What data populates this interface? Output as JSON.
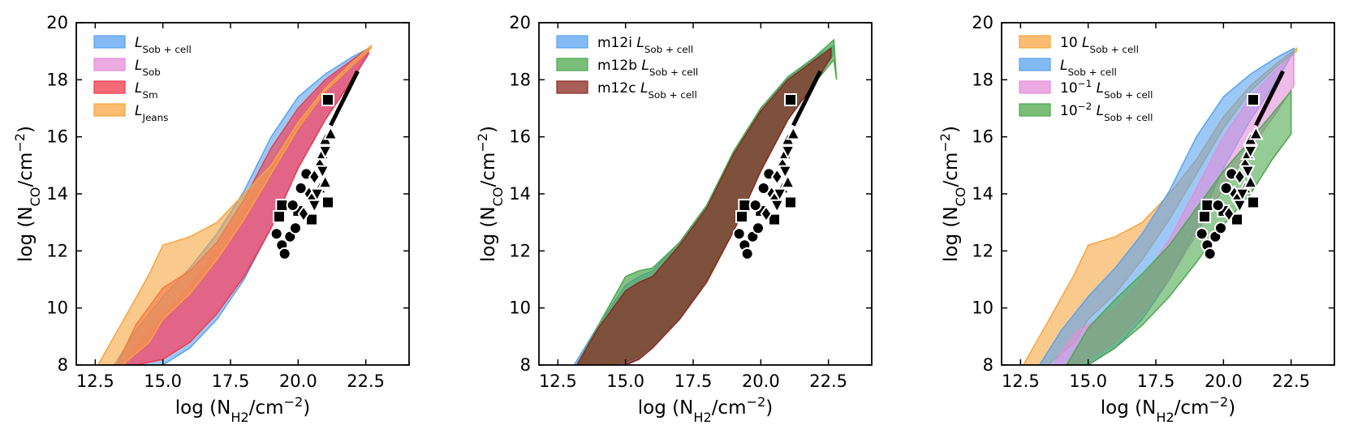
{
  "chart_data": [
    {
      "type": "area",
      "xlabel": "log (N_H2/cm^-2)",
      "ylabel": "log (N_CO/cm^-2)",
      "xlim": [
        11.8,
        24.1
      ],
      "ylim": [
        8,
        20
      ],
      "xticks": [
        "12.5",
        "15.0",
        "17.5",
        "20.0",
        "22.5"
      ],
      "yticks": [
        "8",
        "10",
        "12",
        "14",
        "16",
        "18",
        "20"
      ],
      "legend_position": "upper-left",
      "series": [
        {
          "name": "L_Sob+cell",
          "color": "#5aa3f0",
          "x": [
            13.2,
            14.0,
            15.0,
            16.0,
            17.0,
            18.0,
            19.0,
            20.0,
            21.0,
            22.0,
            22.6
          ],
          "upper": [
            8.0,
            9.2,
            10.4,
            11.4,
            12.6,
            14.1,
            16.0,
            17.4,
            18.2,
            18.8,
            19.1
          ],
          "lower": [
            8.0,
            8.0,
            8.0,
            8.6,
            9.6,
            11.0,
            12.8,
            14.9,
            16.6,
            18.0,
            19.0
          ]
        },
        {
          "name": "L_Sob",
          "color": "#e48ed8",
          "x": [
            13.5,
            14.0,
            15.0,
            16.0,
            17.0,
            18.0,
            19.0,
            20.0,
            21.0,
            22.0,
            22.5
          ],
          "upper": [
            8.0,
            8.7,
            9.7,
            10.8,
            12.1,
            13.5,
            15.1,
            16.8,
            17.9,
            18.6,
            19.0
          ],
          "lower": [
            8.0,
            8.0,
            8.2,
            8.9,
            9.9,
            11.2,
            12.9,
            14.9,
            16.6,
            18.0,
            18.9
          ]
        },
        {
          "name": "L_Sm",
          "color": "#f03a4a",
          "x": [
            13.3,
            14.0,
            15.0,
            16.0,
            17.0,
            18.0,
            19.0,
            20.0,
            21.0,
            22.0,
            22.6
          ],
          "upper": [
            8.0,
            9.4,
            10.7,
            11.3,
            12.3,
            13.8,
            15.6,
            17.0,
            18.0,
            18.7,
            19.1
          ],
          "lower": [
            8.0,
            8.0,
            8.2,
            8.8,
            9.8,
            11.1,
            12.8,
            14.9,
            16.6,
            18.0,
            18.9
          ]
        },
        {
          "name": "L_Jeans",
          "color": "#f7a540",
          "x": [
            12.6,
            13.5,
            14.5,
            15.0,
            16.0,
            17.0,
            18.0,
            19.0,
            20.0,
            21.0,
            22.0,
            22.7
          ],
          "upper": [
            8.0,
            9.5,
            11.2,
            12.2,
            12.5,
            13.0,
            14.0,
            15.0,
            16.5,
            17.7,
            18.6,
            19.2
          ],
          "lower": [
            8.0,
            8.0,
            8.8,
            9.6,
            10.5,
            11.7,
            13.1,
            14.7,
            16.3,
            17.6,
            18.5,
            19.1
          ]
        }
      ]
    },
    {
      "type": "area",
      "xlabel": "log (N_H2/cm^-2)",
      "ylabel": "log (N_CO/cm^-2)",
      "xlim": [
        11.8,
        24.1
      ],
      "ylim": [
        8,
        20
      ],
      "xticks": [
        "12.5",
        "15.0",
        "17.5",
        "20.0",
        "22.5"
      ],
      "yticks": [
        "8",
        "10",
        "12",
        "14",
        "16",
        "18",
        "20"
      ],
      "legend_position": "upper-left",
      "series": [
        {
          "name": "m12i L_Sob+cell",
          "color": "#5aa3f0",
          "x": [
            13.1,
            14.0,
            15.0,
            15.5,
            16.0,
            17.0,
            18.0,
            19.0,
            20.0,
            21.0,
            22.0,
            22.7
          ],
          "upper": [
            8.0,
            9.4,
            10.8,
            11.1,
            11.3,
            12.3,
            13.6,
            15.5,
            17.0,
            18.1,
            18.8,
            19.2
          ],
          "lower": [
            8.0,
            8.0,
            8.0,
            8.2,
            8.6,
            9.6,
            11.0,
            12.7,
            14.8,
            16.6,
            17.9,
            18.9
          ]
        },
        {
          "name": "m12b L_Sob+cell",
          "color": "#4ea84e",
          "x": [
            13.2,
            14.0,
            15.0,
            15.5,
            16.0,
            17.0,
            18.0,
            19.0,
            20.0,
            21.0,
            22.0,
            22.7,
            22.8
          ],
          "upper": [
            8.0,
            9.4,
            11.1,
            11.3,
            11.4,
            12.3,
            13.6,
            15.5,
            17.0,
            18.1,
            18.8,
            19.4,
            18.0
          ],
          "lower": [
            8.0,
            8.0,
            8.1,
            8.3,
            8.7,
            9.7,
            11.0,
            12.7,
            14.8,
            16.6,
            17.9,
            18.7,
            18.0
          ]
        },
        {
          "name": "m12c L_Sob+cell",
          "color": "#8b2a20",
          "x": [
            13.2,
            14.0,
            15.0,
            15.5,
            16.0,
            17.0,
            18.0,
            19.0,
            20.0,
            21.0,
            22.0,
            22.6
          ],
          "upper": [
            8.0,
            9.3,
            10.6,
            10.9,
            11.1,
            12.2,
            13.5,
            15.4,
            16.9,
            18.0,
            18.7,
            19.1
          ],
          "lower": [
            8.0,
            8.0,
            8.0,
            8.2,
            8.6,
            9.6,
            10.9,
            12.7,
            14.8,
            16.6,
            17.9,
            18.8
          ]
        }
      ]
    },
    {
      "type": "area",
      "xlabel": "log (N_H2/cm^-2)",
      "ylabel": "log (N_CO/cm^-2)",
      "xlim": [
        11.8,
        24.1
      ],
      "ylim": [
        8,
        20
      ],
      "xticks": [
        "12.5",
        "15.0",
        "17.5",
        "20.0",
        "22.5"
      ],
      "yticks": [
        "8",
        "10",
        "12",
        "14",
        "16",
        "18",
        "20"
      ],
      "legend_position": "upper-left",
      "series": [
        {
          "name": "10 L_Sob+cell",
          "color": "#f7a540",
          "x": [
            12.6,
            13.5,
            14.5,
            15.0,
            16.0,
            17.0,
            18.0,
            19.0,
            20.0,
            21.0,
            22.0,
            22.7
          ],
          "upper": [
            8.0,
            9.5,
            11.2,
            12.2,
            12.5,
            13.0,
            14.0,
            15.2,
            16.7,
            17.8,
            18.6,
            19.1
          ],
          "lower": [
            8.0,
            8.0,
            8.8,
            9.6,
            10.5,
            11.7,
            13.1,
            14.7,
            16.3,
            17.6,
            18.5,
            19.0
          ]
        },
        {
          "name": "L_Sob+cell",
          "color": "#5aa3f0",
          "x": [
            13.2,
            14.0,
            15.0,
            16.0,
            17.0,
            18.0,
            19.0,
            20.0,
            21.0,
            22.0,
            22.6
          ],
          "upper": [
            8.0,
            9.2,
            10.4,
            11.4,
            12.6,
            14.1,
            16.0,
            17.4,
            18.2,
            18.8,
            19.1
          ],
          "lower": [
            8.0,
            8.0,
            8.0,
            8.6,
            9.6,
            11.0,
            12.8,
            14.9,
            16.6,
            18.0,
            19.0
          ]
        },
        {
          "name": "10^-1 L_Sob+cell",
          "color": "#e48ed8",
          "x": [
            13.7,
            14.5,
            15.0,
            16.0,
            17.0,
            18.0,
            19.0,
            20.0,
            21.0,
            22.0,
            22.6
          ],
          "upper": [
            8.0,
            9.1,
            9.4,
            10.0,
            11.0,
            12.4,
            14.2,
            16.0,
            17.4,
            18.4,
            18.9
          ],
          "lower": [
            8.0,
            8.0,
            8.2,
            8.8,
            9.8,
            11.0,
            12.6,
            14.2,
            15.6,
            16.9,
            17.8
          ]
        },
        {
          "name": "10^-2 L_Sob+cell",
          "color": "#4ea84e",
          "x": [
            14.2,
            15.0,
            16.0,
            17.0,
            18.0,
            19.0,
            20.0,
            21.0,
            21.8,
            22.5
          ],
          "upper": [
            8.0,
            9.3,
            10.3,
            11.2,
            12.2,
            13.5,
            14.8,
            15.9,
            16.8,
            17.6
          ],
          "lower": [
            8.0,
            8.0,
            8.6,
            9.4,
            10.4,
            11.6,
            12.9,
            14.0,
            15.2,
            16.1
          ]
        }
      ]
    }
  ],
  "observations": {
    "line": {
      "x": [
        21.2,
        22.2
      ],
      "y": [
        16.4,
        18.3
      ]
    },
    "points": [
      {
        "m": "s",
        "x": 19.4,
        "y": 13.6
      },
      {
        "m": "s",
        "x": 19.3,
        "y": 13.2
      },
      {
        "m": "s",
        "x": 21.1,
        "y": 17.3
      },
      {
        "m": "s",
        "x": 20.5,
        "y": 13.1
      },
      {
        "m": "s",
        "x": 21.1,
        "y": 13.7
      },
      {
        "m": "s",
        "x": 20.0,
        "y": 13.4
      },
      {
        "m": "o",
        "x": 19.2,
        "y": 12.6
      },
      {
        "m": "o",
        "x": 19.4,
        "y": 12.2
      },
      {
        "m": "o",
        "x": 19.5,
        "y": 11.9
      },
      {
        "m": "o",
        "x": 19.7,
        "y": 12.5
      },
      {
        "m": "o",
        "x": 19.9,
        "y": 12.8
      },
      {
        "m": "o",
        "x": 20.1,
        "y": 14.2
      },
      {
        "m": "o",
        "x": 19.8,
        "y": 13.6
      },
      {
        "m": "o",
        "x": 20.3,
        "y": 14.7
      },
      {
        "m": "d",
        "x": 20.2,
        "y": 13.3
      },
      {
        "m": "d",
        "x": 20.4,
        "y": 14.0
      },
      {
        "m": "d",
        "x": 20.6,
        "y": 14.6
      },
      {
        "m": "d",
        "x": 20.8,
        "y": 15.0
      },
      {
        "m": "d",
        "x": 20.5,
        "y": 13.8
      },
      {
        "m": "^",
        "x": 21.0,
        "y": 15.9
      },
      {
        "m": "^",
        "x": 21.2,
        "y": 16.1
      },
      {
        "m": "^",
        "x": 20.9,
        "y": 15.4
      },
      {
        "m": "^",
        "x": 20.8,
        "y": 14.2
      },
      {
        "m": "^",
        "x": 21.0,
        "y": 14.4
      },
      {
        "m": "v",
        "x": 20.7,
        "y": 14.0
      },
      {
        "m": "v",
        "x": 20.9,
        "y": 14.8
      },
      {
        "m": "v",
        "x": 20.6,
        "y": 13.6
      },
      {
        "m": "v",
        "x": 21.0,
        "y": 15.5
      }
    ]
  }
}
